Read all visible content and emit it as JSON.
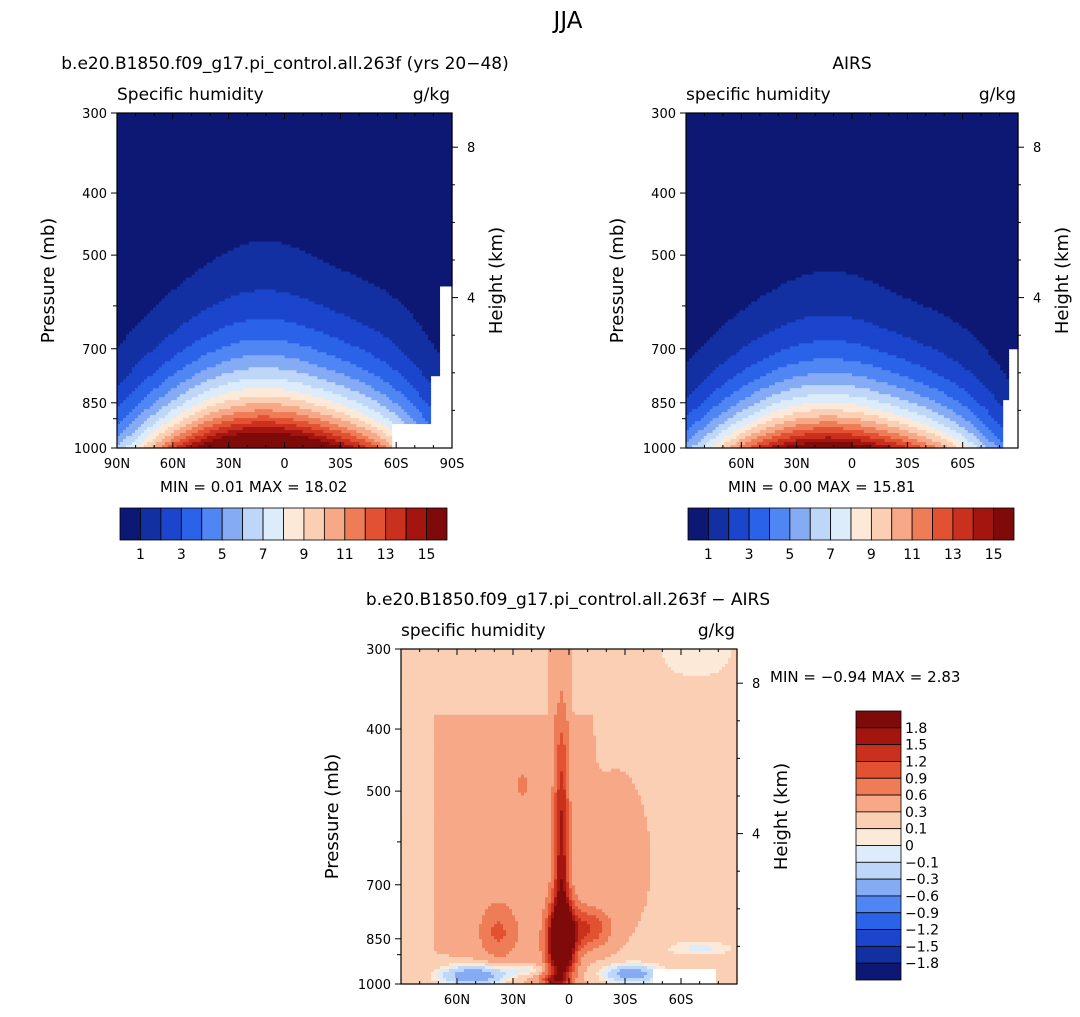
{
  "figure": {
    "title": "JJA"
  },
  "chart_data": [
    {
      "type": "heatmap",
      "title": "b.e20.B1850.f09_g17.pi_control.all.263f (yrs 20−48)",
      "left_label": "Specific humidity",
      "right_label": "g/kg",
      "ylabel": "Pressure (mb)",
      "ylabel_right": "Height (km)",
      "x_range": [
        90,
        -90
      ],
      "x_ticks": [
        {
          "value": 90,
          "label": "90N"
        },
        {
          "value": 60,
          "label": "60N"
        },
        {
          "value": 30,
          "label": "30N"
        },
        {
          "value": 0,
          "label": "0"
        },
        {
          "value": -30,
          "label": "30S"
        },
        {
          "value": -60,
          "label": "60S"
        },
        {
          "value": -90,
          "label": "90S"
        }
      ],
      "y_range": [
        1000,
        300
      ],
      "y_ticks": [
        "300",
        "400",
        "500",
        "700",
        "850",
        "1000"
      ],
      "height_ticks": [
        "8",
        "4"
      ],
      "stats": {
        "min_label": "MIN =",
        "min": "0.01",
        "max_label": "MAX =",
        "max": "18.02"
      },
      "levels": [
        "1",
        "3",
        "5",
        "7",
        "9",
        "11",
        "13",
        "15"
      ],
      "colorbar_labels": [
        "1",
        "3",
        "5",
        "7",
        "9",
        "11",
        "13",
        "15"
      ],
      "data_summary": {
        "field_peak": 18.02,
        "peak_lat": 8,
        "tropopause_peak_lat": 8,
        "missing_region": "60S-90S near surface"
      }
    },
    {
      "type": "heatmap",
      "title": "AIRS",
      "left_label": "specific humidity",
      "right_label": "g/kg",
      "ylabel": "Pressure (mb)",
      "ylabel_right": "Height (km)",
      "x_range": [
        90,
        -90
      ],
      "x_ticks": [
        {
          "value": 60,
          "label": "60N"
        },
        {
          "value": 30,
          "label": "30N"
        },
        {
          "value": 0,
          "label": "0"
        },
        {
          "value": -30,
          "label": "30S"
        },
        {
          "value": -60,
          "label": "60S"
        }
      ],
      "y_range": [
        1000,
        300
      ],
      "y_ticks": [
        "300",
        "400",
        "500",
        "700",
        "850",
        "1000"
      ],
      "height_ticks": [
        "8",
        "4"
      ],
      "stats": {
        "min_label": "MIN =",
        "min": "0.00",
        "max_label": "MAX =",
        "max": "15.81"
      },
      "levels": [
        "1",
        "3",
        "5",
        "7",
        "9",
        "11",
        "13",
        "15"
      ],
      "colorbar_labels": [
        "1",
        "3",
        "5",
        "7",
        "9",
        "11",
        "13",
        "15"
      ],
      "data_summary": {
        "field_peak": 15.81,
        "peak_lat": 8
      }
    },
    {
      "type": "heatmap",
      "title": "b.e20.B1850.f09_g17.pi_control.all.263f − AIRS",
      "left_label": "specific humidity",
      "right_label": "g/kg",
      "ylabel": "Pressure (mb)",
      "ylabel_right": "Height (km)",
      "x_range": [
        90,
        -90
      ],
      "x_ticks": [
        {
          "value": 60,
          "label": "60N"
        },
        {
          "value": 30,
          "label": "30N"
        },
        {
          "value": 0,
          "label": "0"
        },
        {
          "value": -30,
          "label": "30S"
        },
        {
          "value": -60,
          "label": "60S"
        }
      ],
      "y_range": [
        1000,
        300
      ],
      "y_ticks": [
        "300",
        "400",
        "500",
        "700",
        "850",
        "1000"
      ],
      "height_ticks": [
        "8",
        "4"
      ],
      "stats": {
        "min_label": "MIN =",
        "min": "−0.94",
        "max_label": "MAX =",
        "max": "2.83"
      },
      "colorbar_labels": [
        "1.8",
        "1.5",
        "1.2",
        "0.9",
        "0.6",
        "0.3",
        "0.1",
        "0",
        "−0.1",
        "−0.3",
        "−0.6",
        "−0.9",
        "−1.2",
        "−1.5",
        "−1.8"
      ],
      "data_summary": {
        "max_diff": 2.83,
        "max_diff_lat": 5,
        "max_diff_pressure": 850
      }
    }
  ],
  "colors": {
    "seq": [
      "#0c1873",
      "#1230a2",
      "#1a45cc",
      "#2a62e8",
      "#4f86f4",
      "#86abf5",
      "#bed6f8",
      "#dcecfb",
      "#fde9d8",
      "#fbcfb4",
      "#f6a887",
      "#ee7c56",
      "#e25232",
      "#c9301d",
      "#a51510",
      "#7f0a0a"
    ],
    "diff": [
      "#7f0a0a",
      "#a51510",
      "#c9301d",
      "#e25232",
      "#ee7c56",
      "#f6a887",
      "#fbcfb4",
      "#fde9d8",
      "#dcecfb",
      "#bed6f8",
      "#86abf5",
      "#4f86f4",
      "#2a62e8",
      "#1a45cc",
      "#1230a2",
      "#0c1873"
    ]
  }
}
